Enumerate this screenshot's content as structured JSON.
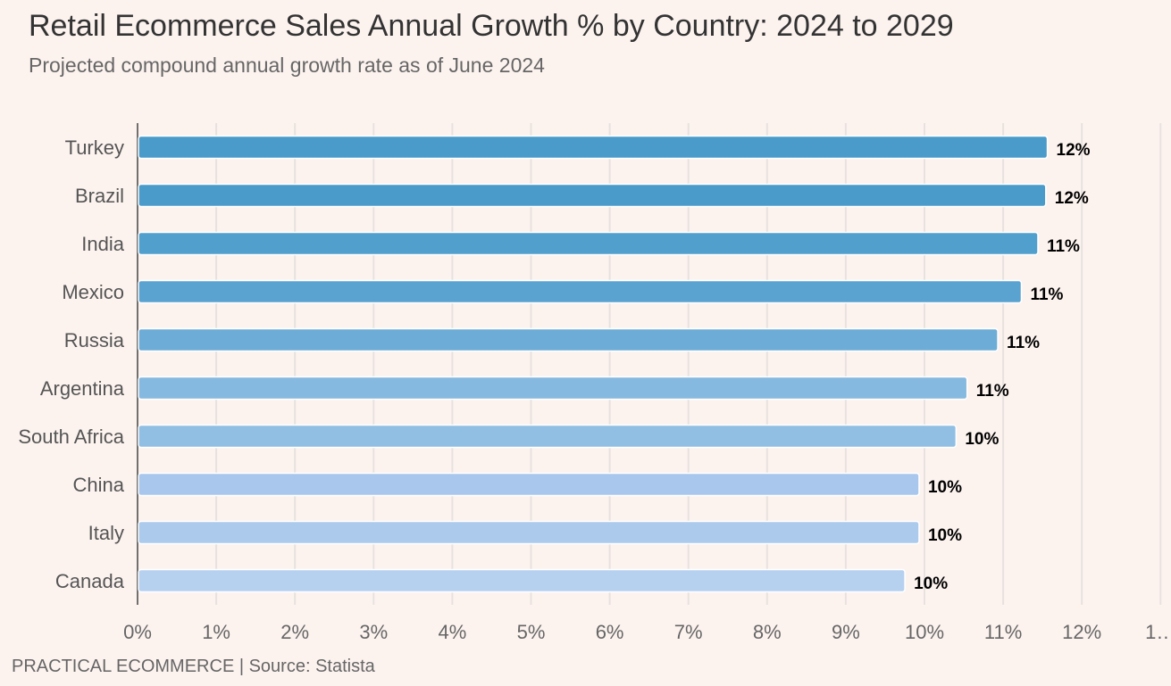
{
  "header": {
    "title": "Retail Ecommerce Sales Annual Growth % by Country: 2024 to 2029",
    "subtitle": "Projected compound annual growth rate as of June 2024"
  },
  "footer": {
    "text": "PRACTICAL ECOMMERCE | Source: Statista"
  },
  "chart_data": {
    "type": "bar",
    "orientation": "horizontal",
    "title": "Retail Ecommerce Sales Annual Growth % by Country: 2024 to 2029",
    "subtitle": "Projected compound annual growth rate as of June 2024",
    "xlabel": "",
    "ylabel": "",
    "xlim": [
      0,
      13
    ],
    "grid": true,
    "categories": [
      "Turkey",
      "Brazil",
      "India",
      "Mexico",
      "Russia",
      "Argentina",
      "South Africa",
      "China",
      "Italy",
      "Canada"
    ],
    "values": [
      11.55,
      11.53,
      11.43,
      11.22,
      10.92,
      10.53,
      10.39,
      9.92,
      9.92,
      9.74
    ],
    "value_labels": [
      "12%",
      "12%",
      "11%",
      "11%",
      "11%",
      "11%",
      "10%",
      "10%",
      "10%",
      "10%"
    ],
    "bar_colors": [
      "#4a9bca",
      "#4a9bca",
      "#509fcd",
      "#5aa3d0",
      "#6dacd6",
      "#86b9df",
      "#90bfe3",
      "#a9c7ec",
      "#abcaec",
      "#b6d1f0"
    ],
    "x_ticks": [
      0,
      1,
      2,
      3,
      4,
      5,
      6,
      7,
      8,
      9,
      10,
      11,
      12,
      13
    ],
    "x_tick_labels": [
      "0%",
      "1%",
      "2%",
      "3%",
      "4%",
      "5%",
      "6%",
      "7%",
      "8%",
      "9%",
      "10%",
      "11%",
      "12%",
      "1…"
    ]
  }
}
